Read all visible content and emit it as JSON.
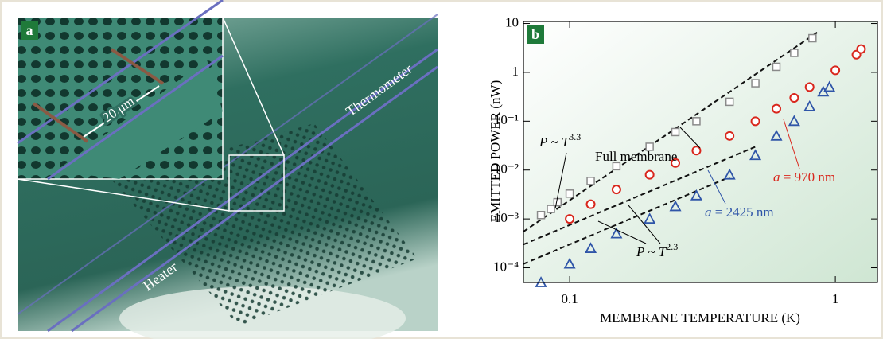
{
  "panel_a": {
    "label": "a",
    "scale": "20 μm",
    "heater": "Heater",
    "thermometer": "Thermometer"
  },
  "chart_data": {
    "type": "scatter",
    "panel_label": "b",
    "x_label": "MEMBRANE TEMPERATURE (K)",
    "y_label": "EMITTED POWER (nW)",
    "log_x": true,
    "log_y": true,
    "xlim": [
      0.067,
      1.44
    ],
    "ylim": [
      5e-05,
      11
    ],
    "xticks": [
      0.1,
      1
    ],
    "yticks": [
      10,
      1,
      {
        "value": 0.1,
        "label": "10⁻¹"
      },
      {
        "value": 0.01,
        "label": "10⁻²"
      },
      {
        "value": 0.001,
        "label": "10⁻³"
      },
      {
        "value": 0.0001,
        "label": "10⁻⁴"
      }
    ],
    "series": [
      {
        "name": "Full membrane",
        "color": "#8a8a8a",
        "marker": "square",
        "x": [
          0.078,
          0.085,
          0.09,
          0.1,
          0.12,
          0.15,
          0.2,
          0.25,
          0.3,
          0.4,
          0.5,
          0.6,
          0.7,
          0.82
        ],
        "values": [
          0.0012,
          0.0016,
          0.0022,
          0.0033,
          0.006,
          0.012,
          0.03,
          0.06,
          0.1,
          0.25,
          0.6,
          1.3,
          2.5,
          5
        ]
      },
      {
        "name": "a = 970 nm",
        "color": "#d9261c",
        "marker": "circle",
        "x": [
          0.1,
          0.12,
          0.15,
          0.2,
          0.25,
          0.3,
          0.4,
          0.5,
          0.6,
          0.7,
          0.8,
          1.0,
          1.2,
          1.25
        ],
        "values": [
          0.001,
          0.002,
          0.004,
          0.008,
          0.014,
          0.025,
          0.05,
          0.1,
          0.18,
          0.3,
          0.5,
          1.1,
          2.3,
          3
        ]
      },
      {
        "name": "a = 2425 nm",
        "color": "#2f55a8",
        "marker": "triangle",
        "x": [
          0.078,
          0.1,
          0.12,
          0.15,
          0.2,
          0.25,
          0.3,
          0.4,
          0.5,
          0.6,
          0.7,
          0.8,
          0.9,
          0.95
        ],
        "values": [
          5e-05,
          0.00012,
          0.00025,
          0.0005,
          0.001,
          0.0018,
          0.003,
          0.008,
          0.02,
          0.05,
          0.1,
          0.2,
          0.4,
          0.5
        ]
      }
    ],
    "fits": [
      {
        "x": [
          0.067,
          0.87
        ],
        "values": [
          0.00055,
          7
        ]
      },
      {
        "x": [
          0.067,
          0.5
        ],
        "values": [
          0.0003,
          0.03
        ]
      },
      {
        "x": [
          0.067,
          0.4
        ],
        "values": [
          0.00012,
          0.0072
        ]
      }
    ],
    "annotations": [
      {
        "text": "Full membrane"
      },
      {
        "base": "P ~ T",
        "exponent": "3.3"
      },
      {
        "variable": "a",
        "text": "= 970 nm"
      },
      {
        "variable": "a",
        "text": "= 2425 nm"
      },
      {
        "base": "P ~ T",
        "exponent": "2.3"
      }
    ]
  }
}
